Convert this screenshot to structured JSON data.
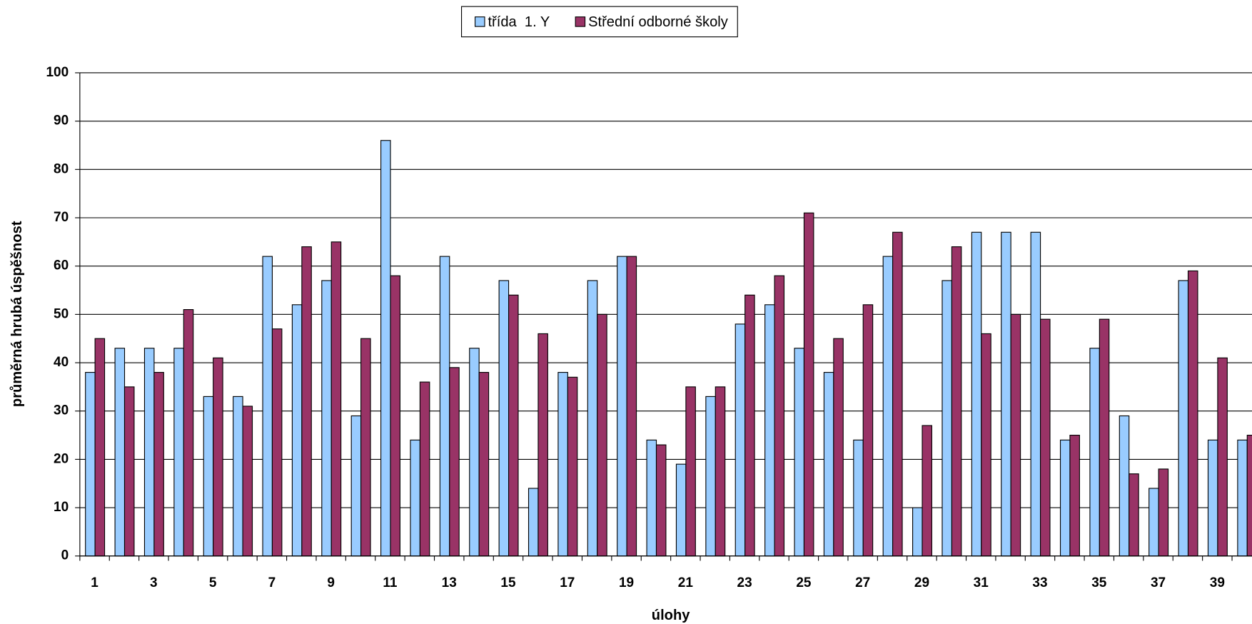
{
  "chart_data": {
    "type": "bar",
    "x_label": "úlohy",
    "y_label": "průměrná hrubá úspěšnost",
    "categories": [
      1,
      null,
      3,
      null,
      5,
      null,
      7,
      null,
      9,
      null,
      11,
      null,
      13,
      null,
      15,
      null,
      17,
      null,
      19,
      null,
      21,
      null,
      23,
      null,
      25,
      null,
      27,
      null,
      29,
      null,
      31,
      null,
      33,
      null,
      35,
      null,
      37,
      null,
      39,
      null
    ],
    "series": [
      {
        "name": "třída  1. Y",
        "color": "#99ccff",
        "values": [
          38,
          43,
          43,
          43,
          33,
          33,
          62,
          52,
          57,
          29,
          86,
          24,
          62,
          43,
          57,
          14,
          38,
          57,
          62,
          24,
          19,
          33,
          48,
          52,
          43,
          38,
          24,
          62,
          10,
          57,
          67,
          67,
          67,
          24,
          43,
          29,
          14,
          57,
          24,
          24
        ]
      },
      {
        "name": "Střední odborné školy",
        "color": "#993366",
        "values": [
          45,
          35,
          38,
          51,
          41,
          31,
          47,
          64,
          65,
          45,
          58,
          36,
          39,
          38,
          54,
          46,
          37,
          50,
          62,
          23,
          35,
          35,
          54,
          58,
          71,
          45,
          52,
          67,
          27,
          64,
          46,
          50,
          49,
          25,
          49,
          17,
          18,
          59,
          41,
          25
        ]
      }
    ],
    "ylim": [
      0,
      100
    ],
    "yticks": [
      0,
      10,
      20,
      30,
      40,
      50,
      60,
      70,
      80,
      90,
      100
    ],
    "grid": true,
    "legend": "top"
  }
}
